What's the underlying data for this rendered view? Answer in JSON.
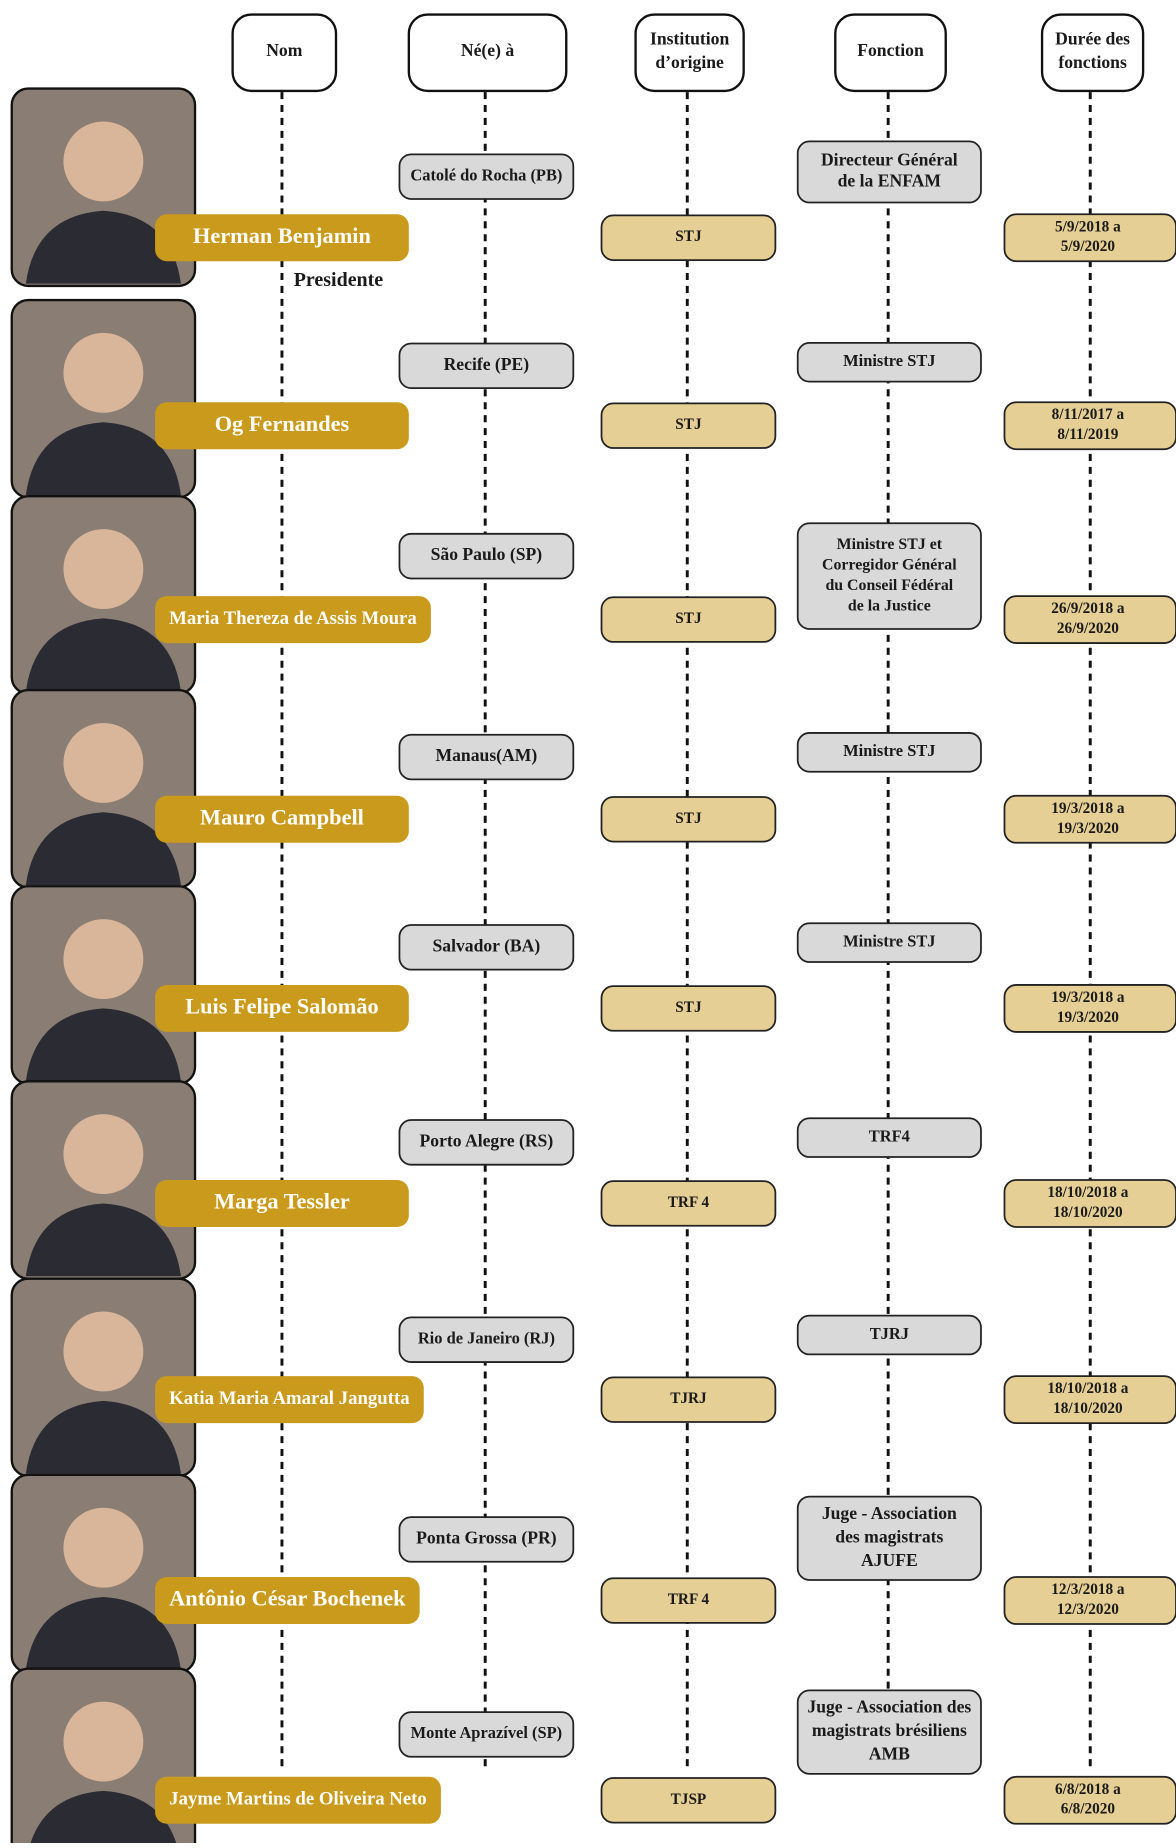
{
  "headers": [
    {
      "lines": [
        "Nom"
      ]
    },
    {
      "lines": [
        "Né(e) à"
      ]
    },
    {
      "lines": [
        "Institution",
        "d’origine"
      ]
    },
    {
      "lines": [
        "Fonction"
      ]
    },
    {
      "lines": [
        "Durée des",
        "fonctions"
      ]
    }
  ],
  "rows": [
    {
      "name": "Herman Benjamin",
      "note": "Presidente",
      "birthplace": "Catolé do Rocha  (PB)",
      "institution": "STJ",
      "function": [
        "Directeur Général",
        "de la ENFAM"
      ],
      "term": [
        "5/9/2018 a",
        "5/9/2020"
      ]
    },
    {
      "name": "Og Fernandes",
      "birthplace": "Recife (PE)",
      "institution": "STJ",
      "function": [
        "Ministre STJ"
      ],
      "term": [
        "8/11/2017 a",
        "8/11/2019"
      ]
    },
    {
      "name": "Maria Thereza de Assis Moura",
      "birthplace": "São Paulo (SP)",
      "institution": "STJ",
      "function": [
        "Ministre STJ et",
        "Corregidor  Général",
        "du Conseil Fédéral",
        "de la Justice"
      ],
      "term": [
        "26/9/2018 a",
        "26/9/2020"
      ]
    },
    {
      "name": "Mauro Campbell",
      "birthplace": "Manaus(AM)",
      "institution": "STJ",
      "function": [
        "Ministre STJ"
      ],
      "term": [
        "19/3/2018 a",
        "19/3/2020"
      ]
    },
    {
      "name": "Luis Felipe Salomão",
      "birthplace": "Salvador (BA)",
      "institution": "STJ",
      "function": [
        "Ministre STJ"
      ],
      "term": [
        "19/3/2018 a",
        "19/3/2020"
      ]
    },
    {
      "name": "Marga Tessler",
      "birthplace": "Porto Alegre (RS)",
      "institution": "TRF 4",
      "function": [
        "TRF4"
      ],
      "term": [
        "18/10/2018 a",
        "18/10/2020"
      ]
    },
    {
      "name": "Katia Maria Amaral Jangutta",
      "birthplace": "Rio de Janeiro (RJ)",
      "institution": "TJRJ",
      "function": [
        "TJRJ"
      ],
      "term": [
        "18/10/2018 a",
        "18/10/2020"
      ]
    },
    {
      "name": "Antônio César Bochenek",
      "birthplace": "Ponta Grossa (PR)",
      "institution": "TRF 4",
      "function": [
        "Juge - Association",
        "des  magistrats",
        "AJUFE"
      ],
      "term": [
        "12/3/2018 a",
        "12/3/2020"
      ]
    },
    {
      "name": "Jayme Martins de Oliveira Neto",
      "birthplace": "Monte Aprazível (SP)",
      "institution": "TJSP",
      "function": [
        "Juge - Association des",
        "magistrats brésiliens",
        "AMB"
      ],
      "term": [
        "6/8/2018 a",
        "6/8/2020"
      ]
    }
  ]
}
